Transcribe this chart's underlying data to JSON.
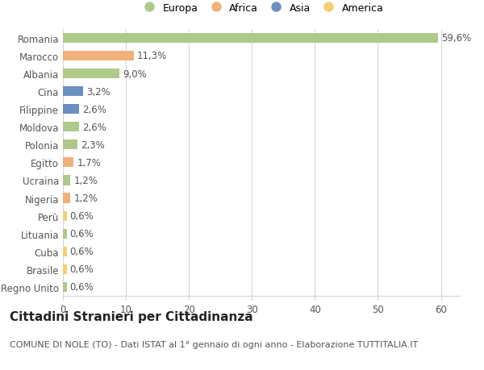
{
  "categories": [
    "Romania",
    "Marocco",
    "Albania",
    "Cina",
    "Filippine",
    "Moldova",
    "Polonia",
    "Egitto",
    "Ucraina",
    "Nigeria",
    "Perù",
    "Lituania",
    "Cuba",
    "Brasile",
    "Regno Unito"
  ],
  "values": [
    59.6,
    11.3,
    9.0,
    3.2,
    2.6,
    2.6,
    2.3,
    1.7,
    1.2,
    1.2,
    0.6,
    0.6,
    0.6,
    0.6,
    0.6
  ],
  "labels": [
    "59,6%",
    "11,3%",
    "9,0%",
    "3,2%",
    "2,6%",
    "2,6%",
    "2,3%",
    "1,7%",
    "1,2%",
    "1,2%",
    "0,6%",
    "0,6%",
    "0,6%",
    "0,6%",
    "0,6%"
  ],
  "continents": [
    "Europa",
    "Africa",
    "Europa",
    "Asia",
    "Asia",
    "Europa",
    "Europa",
    "Africa",
    "Europa",
    "Africa",
    "America",
    "Europa",
    "America",
    "America",
    "Europa"
  ],
  "continent_colors": {
    "Europa": "#aec98a",
    "Africa": "#f0b07a",
    "Asia": "#6b8fc0",
    "America": "#f0d070"
  },
  "legend_entries": [
    "Europa",
    "Africa",
    "Asia",
    "America"
  ],
  "legend_colors": [
    "#aec98a",
    "#f0b07a",
    "#6b8fc0",
    "#f0d070"
  ],
  "xlim": [
    0,
    63
  ],
  "xticks": [
    0,
    10,
    20,
    30,
    40,
    50,
    60
  ],
  "background_color": "#ffffff",
  "grid_color": "#d5d5d5",
  "title": "Cittadini Stranieri per Cittadinanza",
  "subtitle": "COMUNE DI NOLE (TO) - Dati ISTAT al 1° gennaio di ogni anno - Elaborazione TUTTITALIA.IT",
  "bar_height": 0.55,
  "label_fontsize": 8.5,
  "title_fontsize": 11,
  "subtitle_fontsize": 8,
  "tick_fontsize": 8.5
}
